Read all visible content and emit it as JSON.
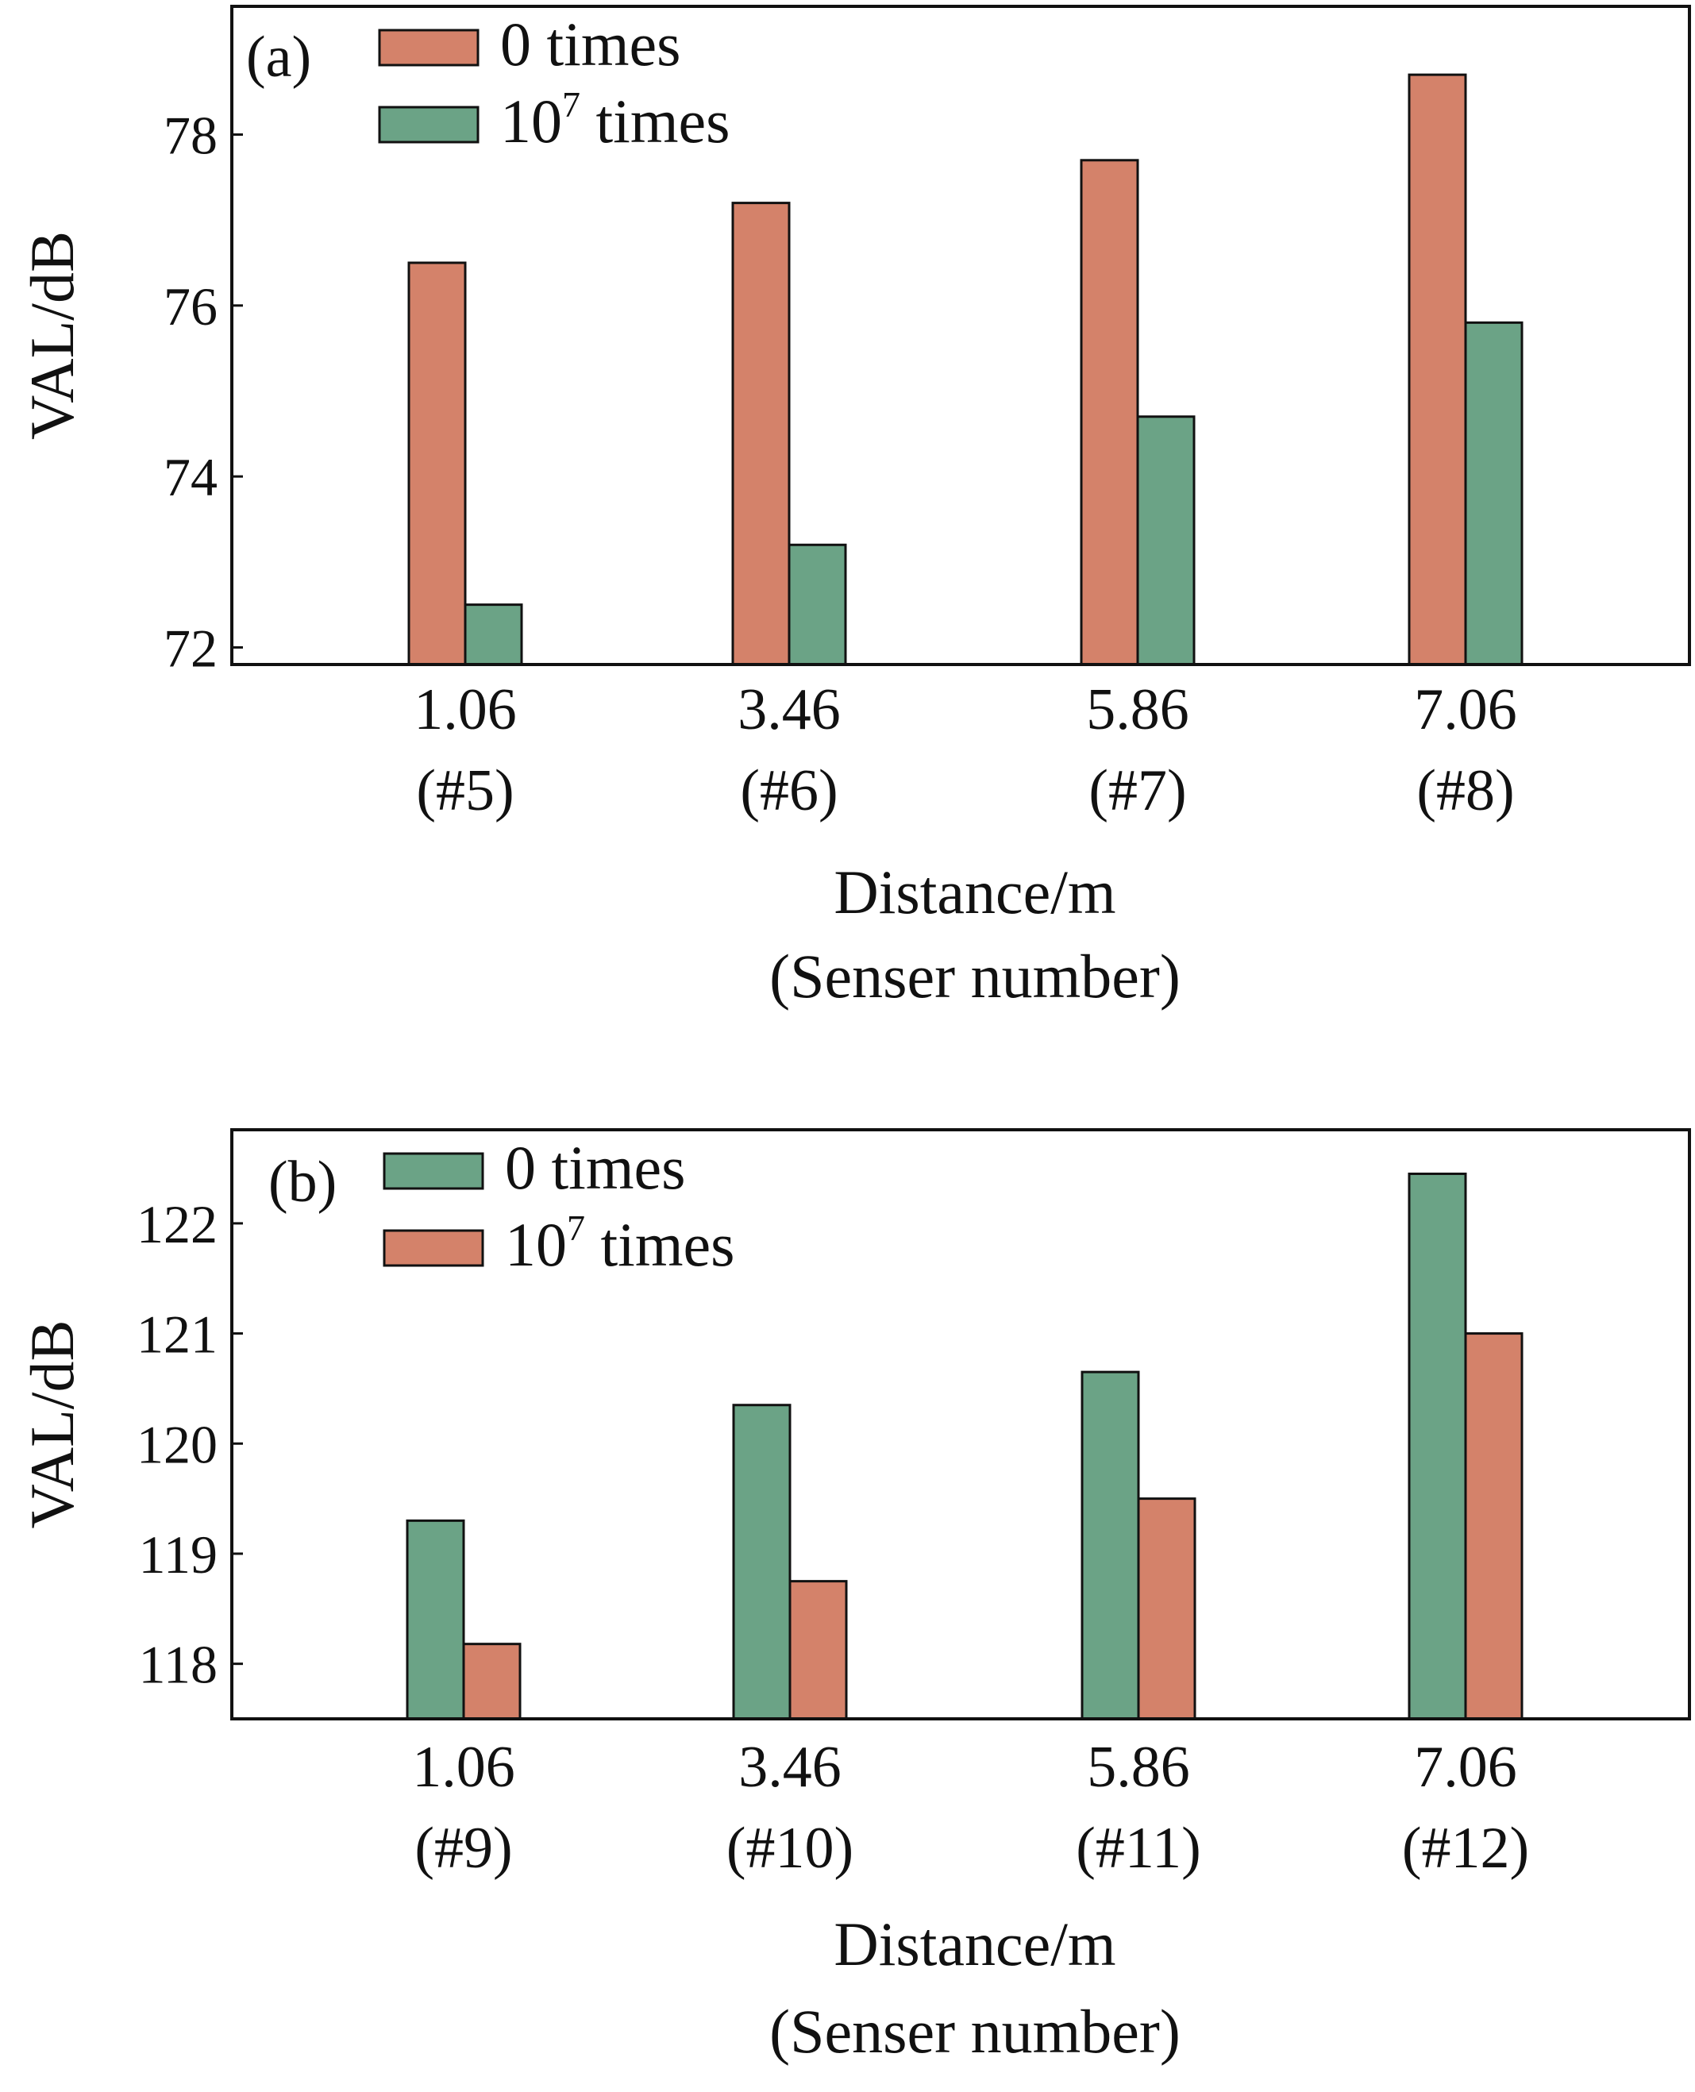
{
  "chart_data": [
    {
      "type": "bar",
      "panel_label": "(a)",
      "categories": [
        "1.06",
        "3.46",
        "5.86",
        "7.06"
      ],
      "category_sublabels": [
        "(#5)",
        "(#6)",
        "(#7)",
        "(#8)"
      ],
      "series": [
        {
          "name": "0 times",
          "values": [
            76.5,
            77.2,
            77.7,
            78.7
          ],
          "color": "#D4826A"
        },
        {
          "name": "10^7 times",
          "name_base": "10",
          "name_sup": "7",
          "name_rest": " times",
          "values": [
            72.5,
            73.2,
            74.7,
            75.8
          ],
          "color": "#6BA386"
        }
      ],
      "xlabel": "Distance/m",
      "xlabel_line2": "(Senser number)",
      "ylabel": "VAL/dB",
      "ylim": [
        71.8,
        79.5
      ],
      "yticks": [
        72,
        74,
        76,
        78
      ],
      "grid": false,
      "legend": "top-left"
    },
    {
      "type": "bar",
      "panel_label": "(b)",
      "categories": [
        "1.06",
        "3.46",
        "5.86",
        "7.06"
      ],
      "category_sublabels": [
        "(#9)",
        "(#10)",
        "(#11)",
        "(#12)"
      ],
      "series": [
        {
          "name": "0 times",
          "values": [
            119.3,
            120.35,
            120.65,
            122.45
          ],
          "color": "#6BA386"
        },
        {
          "name": "10^7 times",
          "name_base": "10",
          "name_sup": "7",
          "name_rest": " times",
          "values": [
            118.18,
            118.75,
            119.5,
            121.0
          ],
          "color": "#D4826A"
        }
      ],
      "xlabel": "Distance/m",
      "xlabel_line2": "(Senser number)",
      "ylabel": "VAL/dB",
      "ylim": [
        117.5,
        122.85
      ],
      "yticks": [
        118,
        119,
        120,
        121,
        122
      ],
      "grid": false,
      "legend": "top-left"
    }
  ]
}
